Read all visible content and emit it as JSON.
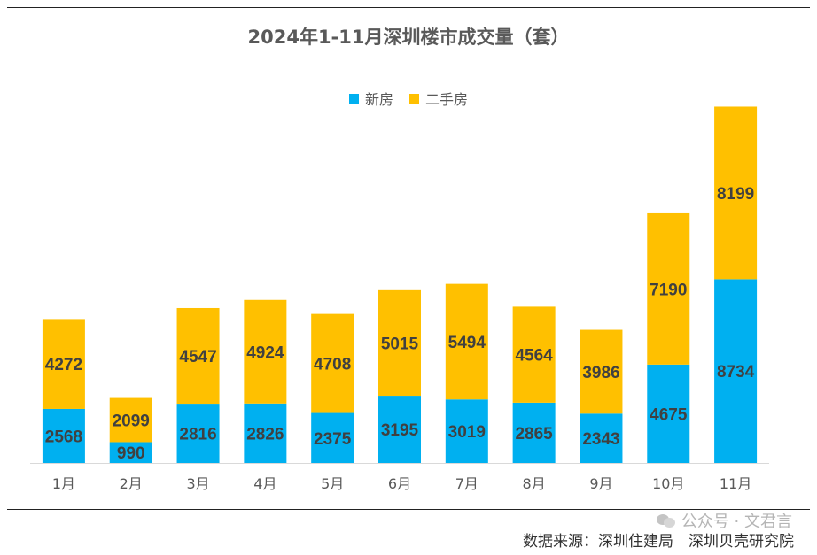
{
  "page": {
    "watermark": "公众号 · 文君言",
    "source_note": "数据来源：深圳住建局　深圳贝壳研究院"
  },
  "colors": {
    "new_home": "#00B0F0",
    "resale": "#FFC000",
    "text": "#595959",
    "label": "#404040",
    "axis": "#D9D9D9"
  },
  "chart_data": {
    "type": "bar",
    "stacked": true,
    "title": "2024年1-11月深圳楼市成交量（套）",
    "categories": [
      "1月",
      "2月",
      "3月",
      "4月",
      "5月",
      "6月",
      "7月",
      "8月",
      "9月",
      "10月",
      "11月"
    ],
    "series": [
      {
        "name": "新房",
        "color": "#00B0F0",
        "values": [
          2568,
          990,
          2816,
          2826,
          2375,
          3195,
          3019,
          2865,
          2343,
          4675,
          8734
        ]
      },
      {
        "name": "二手房",
        "color": "#FFC000",
        "values": [
          4272,
          2099,
          4547,
          4924,
          4708,
          5015,
          5494,
          4564,
          3986,
          7190,
          8199
        ]
      }
    ],
    "ylim": [
      0,
      17500
    ],
    "grid": false,
    "legend_position": "top",
    "data_labels": true
  }
}
